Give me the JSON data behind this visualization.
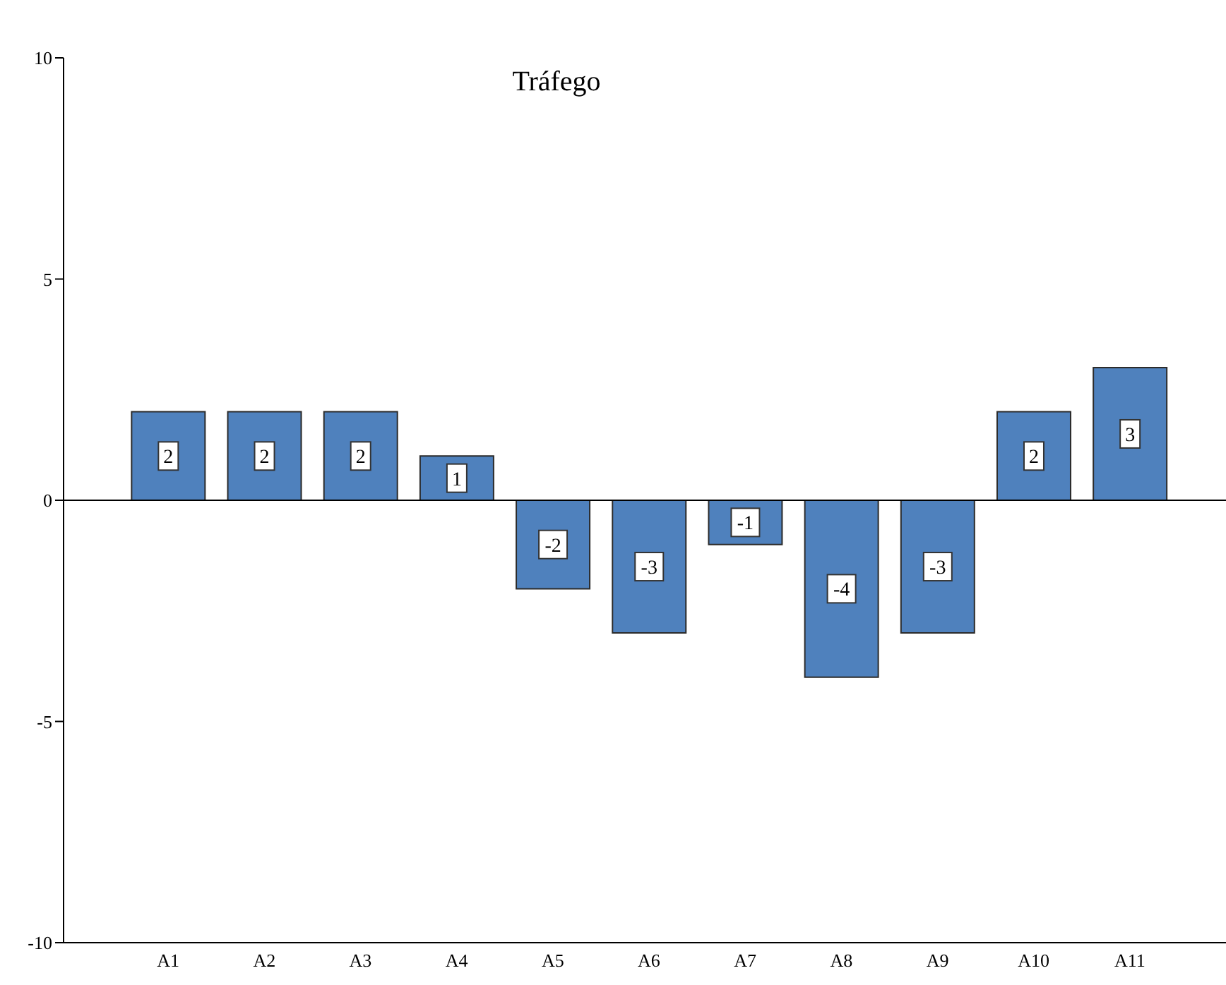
{
  "chart_data": {
    "type": "bar",
    "title": "Tráfego",
    "categories": [
      "A1",
      "A2",
      "A3",
      "A4",
      "A5",
      "A6",
      "A7",
      "A8",
      "A9",
      "A10",
      "A11"
    ],
    "values": [
      2,
      2,
      2,
      1,
      -2,
      -3,
      -1,
      -4,
      -3,
      2,
      3
    ],
    "color": "#4f81bd",
    "ylim": [
      -10,
      10
    ],
    "yticks": [
      -10,
      -5,
      0,
      5,
      10
    ],
    "ref_lines": [
      {
        "axis": "y",
        "value": 0
      }
    ],
    "data_labels": true,
    "grid": false,
    "legend": false
  }
}
